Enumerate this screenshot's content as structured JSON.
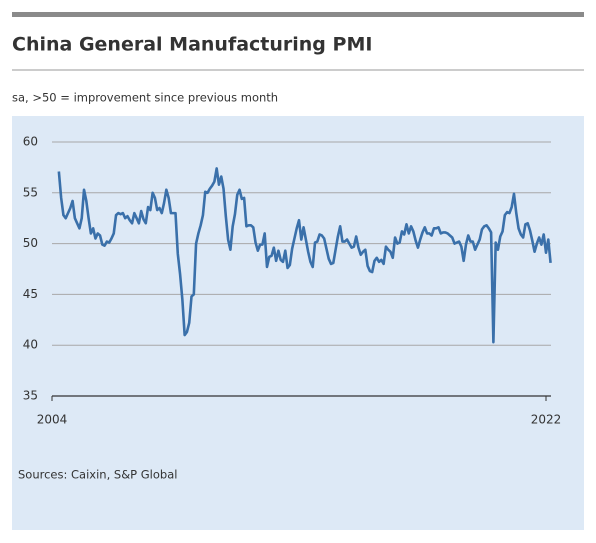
{
  "chart_data": {
    "type": "line",
    "title": "China General Manufacturing PMI",
    "subtitle": "sa, >50 = improvement since previous month",
    "source": "Sources: Caixin, S&P Global",
    "categories": [
      "2004",
      null,
      null,
      null,
      null,
      null,
      null,
      null,
      null,
      null,
      null,
      null,
      null,
      null,
      null,
      null,
      null,
      null,
      null,
      null,
      null,
      null,
      null,
      null,
      null,
      null,
      null,
      null,
      null,
      null,
      null,
      null,
      null,
      null,
      null,
      null,
      null,
      null,
      null,
      null,
      null,
      null,
      null,
      null,
      null,
      null,
      null,
      null,
      null,
      null,
      null,
      null,
      null,
      null,
      null,
      null,
      null,
      null,
      null,
      null,
      null,
      null,
      null,
      null,
      null,
      null,
      null,
      null,
      null,
      null,
      null,
      null,
      null,
      null,
      null,
      null,
      null,
      null,
      null,
      null,
      null,
      null,
      null,
      null,
      null,
      null,
      null,
      null,
      null,
      null,
      null,
      null,
      null,
      null,
      null,
      null,
      null,
      null,
      null,
      null,
      null,
      null,
      null,
      null,
      null,
      null,
      null,
      null,
      null,
      null,
      null,
      null,
      null,
      null,
      null,
      null,
      null,
      null,
      null,
      null,
      null,
      null,
      null,
      null,
      null,
      null,
      null,
      null,
      null,
      null,
      null,
      null,
      null,
      null,
      null,
      null,
      null,
      null,
      null,
      null,
      null,
      null,
      null,
      null,
      null,
      null,
      null,
      null,
      null,
      null,
      null,
      null,
      null,
      null,
      null,
      null,
      null,
      null,
      null,
      null,
      null,
      null,
      null,
      null,
      null,
      null,
      null,
      null,
      null,
      null,
      null,
      null,
      null,
      null,
      null,
      null,
      null,
      null,
      null,
      null,
      null,
      null,
      null,
      null,
      null,
      null,
      null,
      null,
      null,
      null,
      null,
      null,
      null,
      null,
      null,
      null,
      null,
      null,
      null,
      null,
      null,
      null,
      null,
      null,
      null,
      null,
      null,
      null,
      null,
      null,
      null,
      null,
      null,
      null,
      null,
      null,
      "2022",
      null,
      null
    ],
    "color": "#3a70aa",
    "values": [
      null,
      null,
      null,
      57.1,
      54.5,
      52.8,
      52.5,
      53.0,
      53.5,
      54.2,
      52.5,
      52.0,
      51.5,
      52.5,
      55.3,
      54.2,
      52.5,
      51.0,
      51.5,
      50.5,
      51.0,
      50.8,
      49.9,
      49.8,
      50.2,
      50.1,
      50.5,
      51.0,
      52.8,
      53.0,
      52.9,
      53.0,
      52.5,
      52.7,
      52.3,
      52.0,
      53.0,
      52.5,
      52.0,
      53.2,
      52.4,
      52.0,
      53.6,
      53.3,
      55.0,
      54.5,
      53.3,
      53.5,
      53.0,
      54.0,
      55.3,
      54.5,
      53.0,
      53.0,
      53.0,
      49.0,
      47.0,
      44.5,
      41.0,
      41.3,
      42.2,
      44.8,
      45.0,
      50.0,
      51.0,
      51.8,
      52.8,
      55.1,
      55.0,
      55.4,
      55.7,
      56.1,
      57.4,
      55.8,
      56.6,
      55.4,
      52.7,
      50.4,
      49.4,
      51.7,
      52.9,
      54.8,
      55.3,
      54.4,
      54.5,
      51.7,
      51.8,
      51.8,
      51.6,
      50.1,
      49.3,
      49.9,
      49.9,
      51.0,
      47.7,
      48.7,
      48.8,
      49.6,
      48.3,
      49.3,
      48.4,
      48.2,
      49.3,
      47.6,
      47.9,
      49.5,
      50.5,
      51.5,
      52.3,
      50.4,
      51.6,
      50.4,
      49.2,
      48.2,
      47.7,
      50.1,
      50.2,
      50.9,
      50.8,
      50.5,
      49.5,
      48.5,
      48.0,
      48.1,
      49.4,
      50.7,
      51.7,
      50.2,
      50.2,
      50.4,
      50.0,
      49.6,
      49.7,
      50.7,
      49.6,
      48.9,
      49.2,
      49.4,
      47.8,
      47.3,
      47.2,
      48.3,
      48.6,
      48.2,
      48.4,
      48.0,
      49.7,
      49.4,
      49.2,
      48.6,
      50.6,
      50.0,
      50.1,
      51.2,
      50.9,
      51.9,
      51.0,
      51.7,
      51.2,
      50.3,
      49.6,
      50.4,
      51.1,
      51.6,
      51.0,
      51.0,
      50.8,
      51.5,
      51.5,
      51.6,
      51.0,
      51.1,
      51.1,
      51.0,
      50.8,
      50.6,
      50.0,
      50.1,
      50.2,
      49.7,
      48.3,
      49.9,
      50.8,
      50.2,
      50.2,
      49.4,
      49.9,
      50.4,
      51.4,
      51.7,
      51.8,
      51.5,
      51.1,
      40.3,
      50.1,
      49.4,
      50.7,
      51.2,
      52.8,
      53.1,
      53.0,
      53.6,
      54.9,
      53.0,
      51.5,
      50.9,
      50.6,
      51.9,
      52.0,
      51.3,
      50.3,
      49.2,
      50.0,
      50.6,
      49.9,
      50.9,
      49.1,
      50.4,
      48.1
    ],
    "ylim": [
      35,
      60
    ],
    "yticks": [
      35,
      40,
      45,
      50,
      55,
      60
    ],
    "grid": true
  }
}
